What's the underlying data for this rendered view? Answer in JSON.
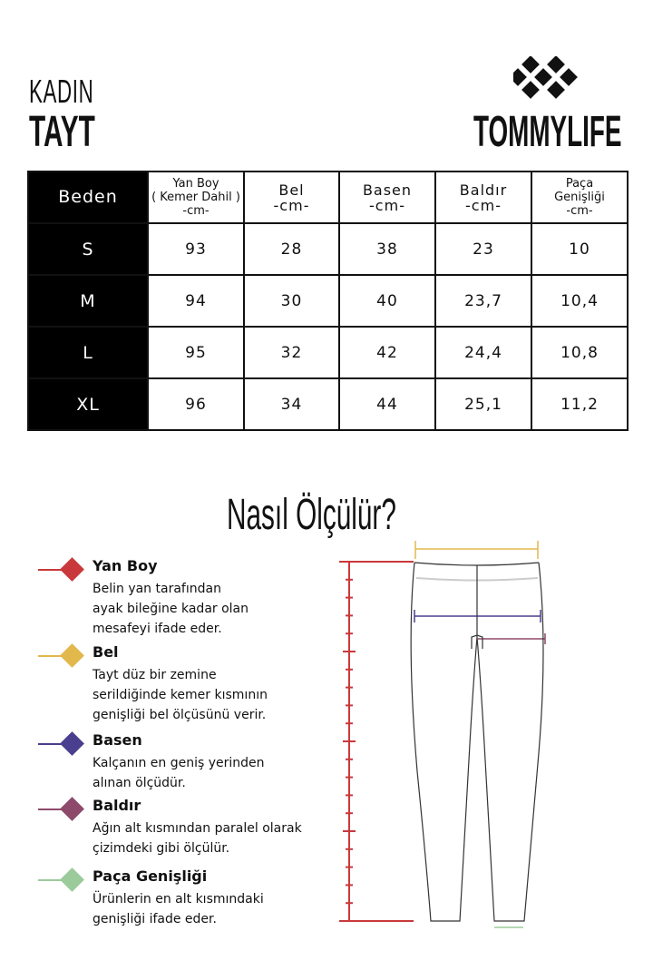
{
  "header": {
    "category": "KADIN",
    "product": "TAYT",
    "brand": "TOMMYLIFE"
  },
  "table": {
    "columns": [
      "Beden",
      "Yan Boy\n( Kemer Dahil )\n-cm-",
      "Bel\n-cm-",
      "Basen\n-cm-",
      "Baldır\n-cm-",
      "Paça\nGenişliği\n-cm-"
    ],
    "rows": [
      [
        "S",
        "93",
        "28",
        "38",
        "23",
        "10"
      ],
      [
        "M",
        "94",
        "30",
        "40",
        "23,7",
        "10,4"
      ],
      [
        "L",
        "95",
        "32",
        "42",
        "24,4",
        "10,8"
      ],
      [
        "XL",
        "96",
        "34",
        "44",
        "25,1",
        "11,2"
      ]
    ]
  },
  "guide": {
    "title": "Nasıl Ölçülür?",
    "items": [
      {
        "title": "Yan Boy",
        "desc": "Belin yan tarafından\nayak bileğine kadar olan\nmesafeyi ifade eder.",
        "color": "#c9393b"
      },
      {
        "title": "Bel",
        "desc": "Tayt düz bir zemine\nserildiğinde kemer kısmının\ngenişliği bel ölçüsünü verir.",
        "color": "#e2b84d"
      },
      {
        "title": "Basen",
        "desc": "Kalçanın en geniş yerinden\nalınan ölçüdür.",
        "color": "#4a3f8e"
      },
      {
        "title": "Baldır",
        "desc": "Ağın alt kısmından paralel olarak\nçizimdeki gibi ölçülür.",
        "color": "#8e4a6b"
      },
      {
        "title": "Paça Genişliği",
        "desc": "Ürünlerin en alt kısmındaki\ngenişliği ifade eder.",
        "color": "#9bcb9b"
      }
    ]
  }
}
